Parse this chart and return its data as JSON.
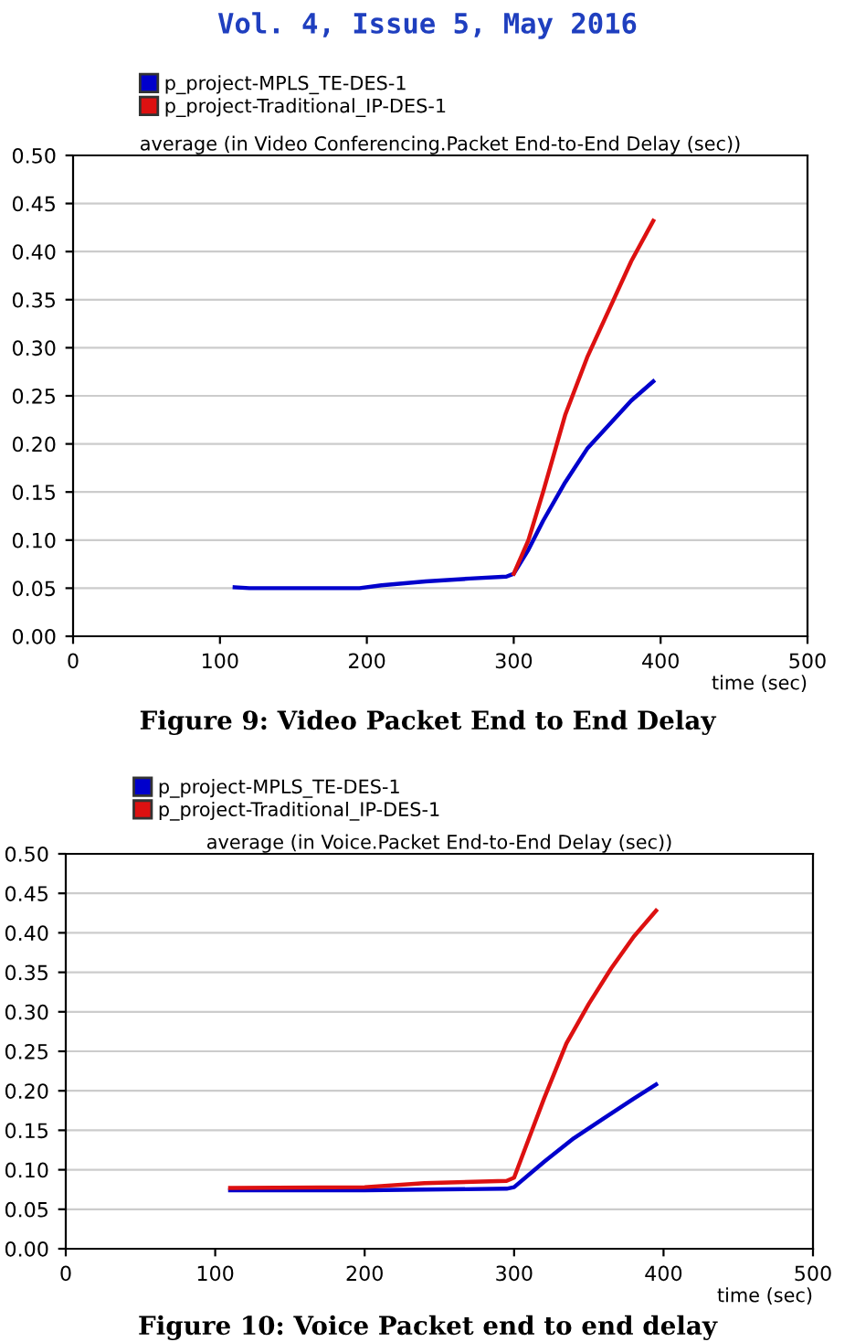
{
  "chart_data": [
    {
      "type": "line",
      "title": "average (in Video Conferencing.Packet End-to-End Delay (sec))",
      "xlabel": "time (sec)",
      "xlim": [
        0,
        500
      ],
      "xticks": [
        0,
        100,
        200,
        300,
        400,
        500
      ],
      "ylim": [
        0,
        0.5
      ],
      "yticks": [
        {
          "value": 0,
          "label": "0.00"
        },
        {
          "value": 0.05,
          "label": "0.05"
        },
        {
          "value": 0.1,
          "label": "0.10"
        },
        {
          "value": 0.15,
          "label": "0.15"
        },
        {
          "value": 0.2,
          "label": "0.20"
        },
        {
          "value": 0.25,
          "label": "0.25"
        },
        {
          "value": 0.3,
          "label": "0.30"
        },
        {
          "value": 0.35,
          "label": "0.35"
        },
        {
          "value": 0.4,
          "label": "0.40"
        },
        {
          "value": 0.45,
          "label": "0.45"
        },
        {
          "value": 0.5,
          "label": "0.50"
        }
      ],
      "grid": "y",
      "legend": "top left",
      "annotations": [
        "Vol. 4, Issue 5, May 2016",
        "Figure 9: Video Packet End to End Delay"
      ],
      "x": [
        110,
        120,
        150,
        195,
        210,
        240,
        270,
        295,
        300,
        310,
        320,
        335,
        350,
        365,
        380,
        395
      ],
      "series": [
        {
          "name": "p_project-MPLS_TE-DES-1",
          "color": "#0000cc",
          "values": [
            0.051,
            0.05,
            0.05,
            0.05,
            0.053,
            0.057,
            0.06,
            0.062,
            0.065,
            0.09,
            0.12,
            0.16,
            0.195,
            0.22,
            0.245,
            0.265
          ]
        },
        {
          "name": "p_project-Traditional_IP-DES-1",
          "color": "#dd1111",
          "values": [
            null,
            null,
            null,
            null,
            null,
            null,
            null,
            null,
            0.065,
            0.1,
            0.15,
            0.23,
            0.29,
            0.34,
            0.39,
            0.432
          ]
        }
      ]
    },
    {
      "type": "line",
      "title": "average (in Voice.Packet End-to-End Delay (sec))",
      "xlabel": "time (sec)",
      "xlim": [
        0,
        500
      ],
      "xticks": [
        0,
        100,
        200,
        300,
        400,
        500
      ],
      "ylim": [
        0,
        0.5
      ],
      "yticks": [
        {
          "value": 0,
          "label": "0.00"
        },
        {
          "value": 0.05,
          "label": "0.05"
        },
        {
          "value": 0.1,
          "label": "0.10"
        },
        {
          "value": 0.15,
          "label": "0.15"
        },
        {
          "value": 0.2,
          "label": "0.20"
        },
        {
          "value": 0.25,
          "label": "0.25"
        },
        {
          "value": 0.3,
          "label": "0.30"
        },
        {
          "value": 0.35,
          "label": "0.35"
        },
        {
          "value": 0.4,
          "label": "0.40"
        },
        {
          "value": 0.45,
          "label": "0.45"
        },
        {
          "value": 0.5,
          "label": "0.50"
        }
      ],
      "grid": "y",
      "legend": "top left",
      "annotations": [
        "Figure 10: Voice Packet end to end delay"
      ],
      "series": [
        {
          "name": "p_project-MPLS_TE-DES-1",
          "color": "#0000cc",
          "x": [
            110,
            200,
            295,
            300,
            320,
            340,
            360,
            380,
            395
          ],
          "values": [
            0.074,
            0.074,
            0.076,
            0.078,
            0.11,
            0.14,
            0.165,
            0.19,
            0.208
          ]
        },
        {
          "name": "p_project-Traditional_IP-DES-1",
          "color": "#dd1111",
          "x": [
            110,
            200,
            240,
            295,
            300,
            310,
            320,
            335,
            350,
            365,
            380,
            395
          ],
          "values": [
            0.077,
            0.078,
            0.083,
            0.086,
            0.09,
            0.14,
            0.19,
            0.26,
            0.31,
            0.355,
            0.395,
            0.428
          ]
        }
      ]
    }
  ]
}
